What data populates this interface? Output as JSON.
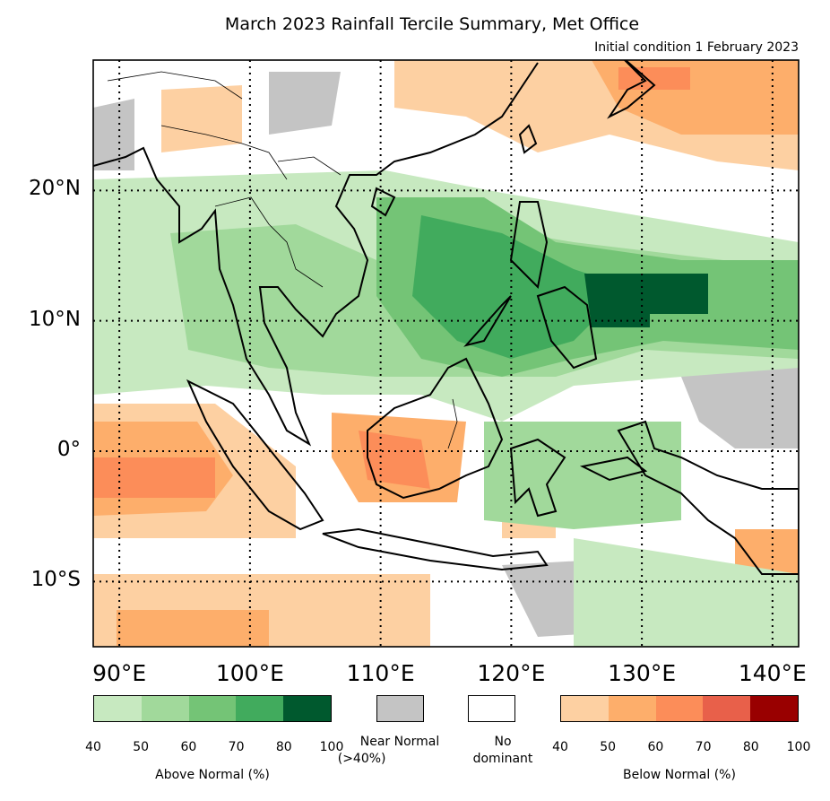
{
  "title": "March 2023 Rainfall Tercile Summary, Met Office",
  "subtitle": "Initial condition 1 February 2023",
  "map": {
    "lon_range": [
      88,
      142
    ],
    "lat_range": [
      -15,
      30
    ],
    "gridlines": "dotted",
    "lat_ticks": [
      {
        "value": 20,
        "label": "20°N"
      },
      {
        "value": 10,
        "label": "10°N"
      },
      {
        "value": 0,
        "label": "0°"
      },
      {
        "value": -10,
        "label": "10°S"
      }
    ],
    "lon_ticks": [
      {
        "value": 90,
        "label": "90°E"
      },
      {
        "value": 100,
        "label": "100°E"
      },
      {
        "value": 110,
        "label": "110°E"
      },
      {
        "value": 120,
        "label": "120°E"
      },
      {
        "value": 130,
        "label": "130°E"
      },
      {
        "value": 140,
        "label": "140°E"
      }
    ]
  },
  "legend": {
    "above_normal": {
      "title": "Above Normal (%)",
      "colors": [
        "#c7e9c0",
        "#a1d99b",
        "#74c476",
        "#41ab5d",
        "#00592e"
      ],
      "ticks": [
        "40",
        "50",
        "60",
        "70",
        "80",
        "100"
      ]
    },
    "near_normal": {
      "label_line1": "Near Normal",
      "label_line2": "(>40%)",
      "color": "#c4c4c4"
    },
    "no_dominant": {
      "label_line1": "No",
      "label_line2": "dominant",
      "color": "#ffffff"
    },
    "below_normal": {
      "title": "Below Normal (%)",
      "colors": [
        "#fdd0a2",
        "#fdae6b",
        "#fc8d59",
        "#e8604a",
        "#990000"
      ],
      "ticks": [
        "40",
        "50",
        "60",
        "70",
        "80",
        "100"
      ]
    }
  }
}
